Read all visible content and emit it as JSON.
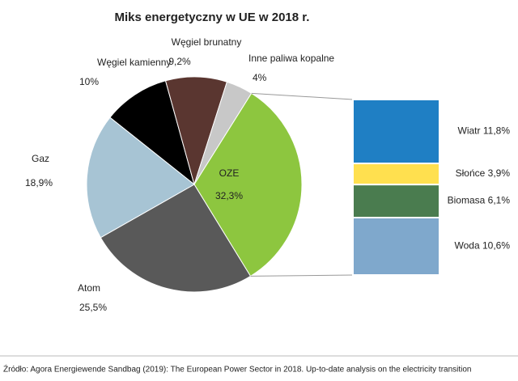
{
  "chart_data": [
    {
      "type": "pie",
      "title": "Miks energetyczny w UE w 2018 r.",
      "categories": [
        "Węgiel kamienny",
        "Węgiel brunatny",
        "Inne paliwa kopalne",
        "OZE",
        "Atom",
        "Gaz"
      ],
      "values": [
        10,
        9.2,
        4,
        32.3,
        25.5,
        18.9
      ],
      "value_labels": [
        "10%",
        "9,2%",
        "4%",
        "32,3%",
        "25,5%",
        "18,9%"
      ],
      "colors": [
        "#000000",
        "#5a3630",
        "#c8c8c8",
        "#8dc63f",
        "#595959",
        "#a7c4d4"
      ]
    },
    {
      "type": "stacked-bar",
      "categories": [
        "Wiatr",
        "Słońce",
        "Biomasa",
        "Woda"
      ],
      "values": [
        11.8,
        3.9,
        6.1,
        10.6
      ],
      "value_labels": [
        "11,8%",
        "3,9%",
        "6,1%",
        "10,6%"
      ],
      "colors": [
        "#1f7fc4",
        "#ffe04f",
        "#4a7c4f",
        "#7fa8cc"
      ]
    }
  ],
  "source": "Źródło: Agora Energiewende Sandbag (2019): The European Power Sector in 2018. Up-to-date analysis on the electricity transition"
}
